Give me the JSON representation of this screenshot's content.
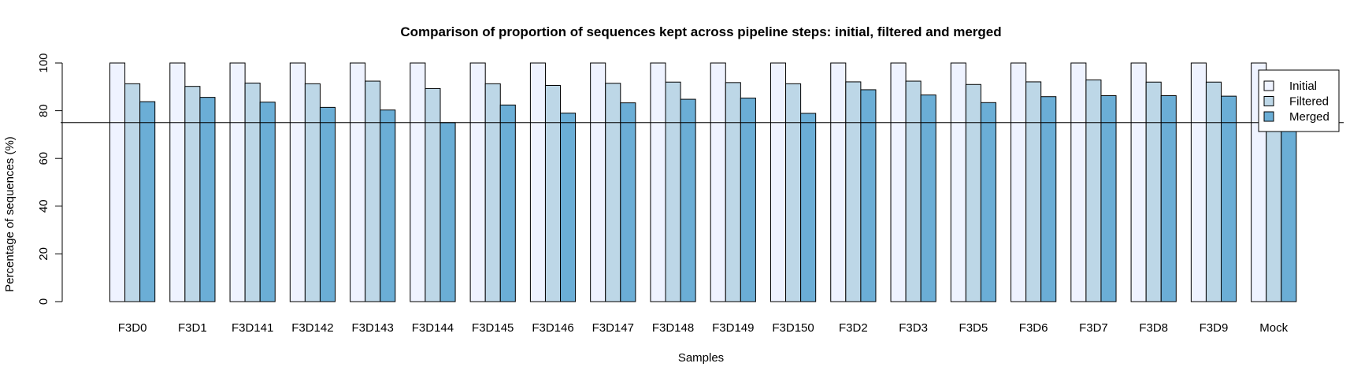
{
  "chart_data": {
    "type": "bar",
    "title": "Comparison of proportion of sequences kept across pipeline steps: initial, filtered and merged",
    "xlabel": "Samples",
    "ylabel": "Percentage of sequences (%)",
    "ylim": [
      0,
      100
    ],
    "yticks": [
      0,
      20,
      40,
      60,
      80,
      100
    ],
    "reference_line": 75,
    "legend_position": "top-right",
    "grid": false,
    "categories": [
      "F3D0",
      "F3D1",
      "F3D141",
      "F3D142",
      "F3D143",
      "F3D144",
      "F3D145",
      "F3D146",
      "F3D147",
      "F3D148",
      "F3D149",
      "F3D150",
      "F3D2",
      "F3D3",
      "F3D5",
      "F3D6",
      "F3D7",
      "F3D8",
      "F3D9",
      "Mock"
    ],
    "series": [
      {
        "name": "Initial",
        "color": "#eff3ff",
        "values": [
          100,
          100,
          100,
          100,
          100,
          100,
          100,
          100,
          100,
          100,
          100,
          100,
          100,
          100,
          100,
          100,
          100,
          100,
          100,
          100
        ]
      },
      {
        "name": "Filtered",
        "color": "#bdd7e7",
        "values": [
          91.3,
          90.2,
          91.6,
          91.3,
          92.4,
          89.3,
          91.3,
          90.6,
          91.5,
          92.0,
          91.8,
          91.3,
          92.1,
          92.4,
          91.0,
          92.1,
          92.9,
          92.0,
          92.0,
          92.0
        ]
      },
      {
        "name": "Merged",
        "color": "#6baed6",
        "values": [
          83.8,
          85.6,
          83.6,
          81.4,
          80.3,
          75.0,
          82.4,
          79.0,
          83.3,
          84.8,
          85.3,
          78.9,
          88.8,
          86.6,
          83.4,
          85.9,
          86.3,
          86.3,
          86.1,
          85.0
        ]
      }
    ]
  }
}
